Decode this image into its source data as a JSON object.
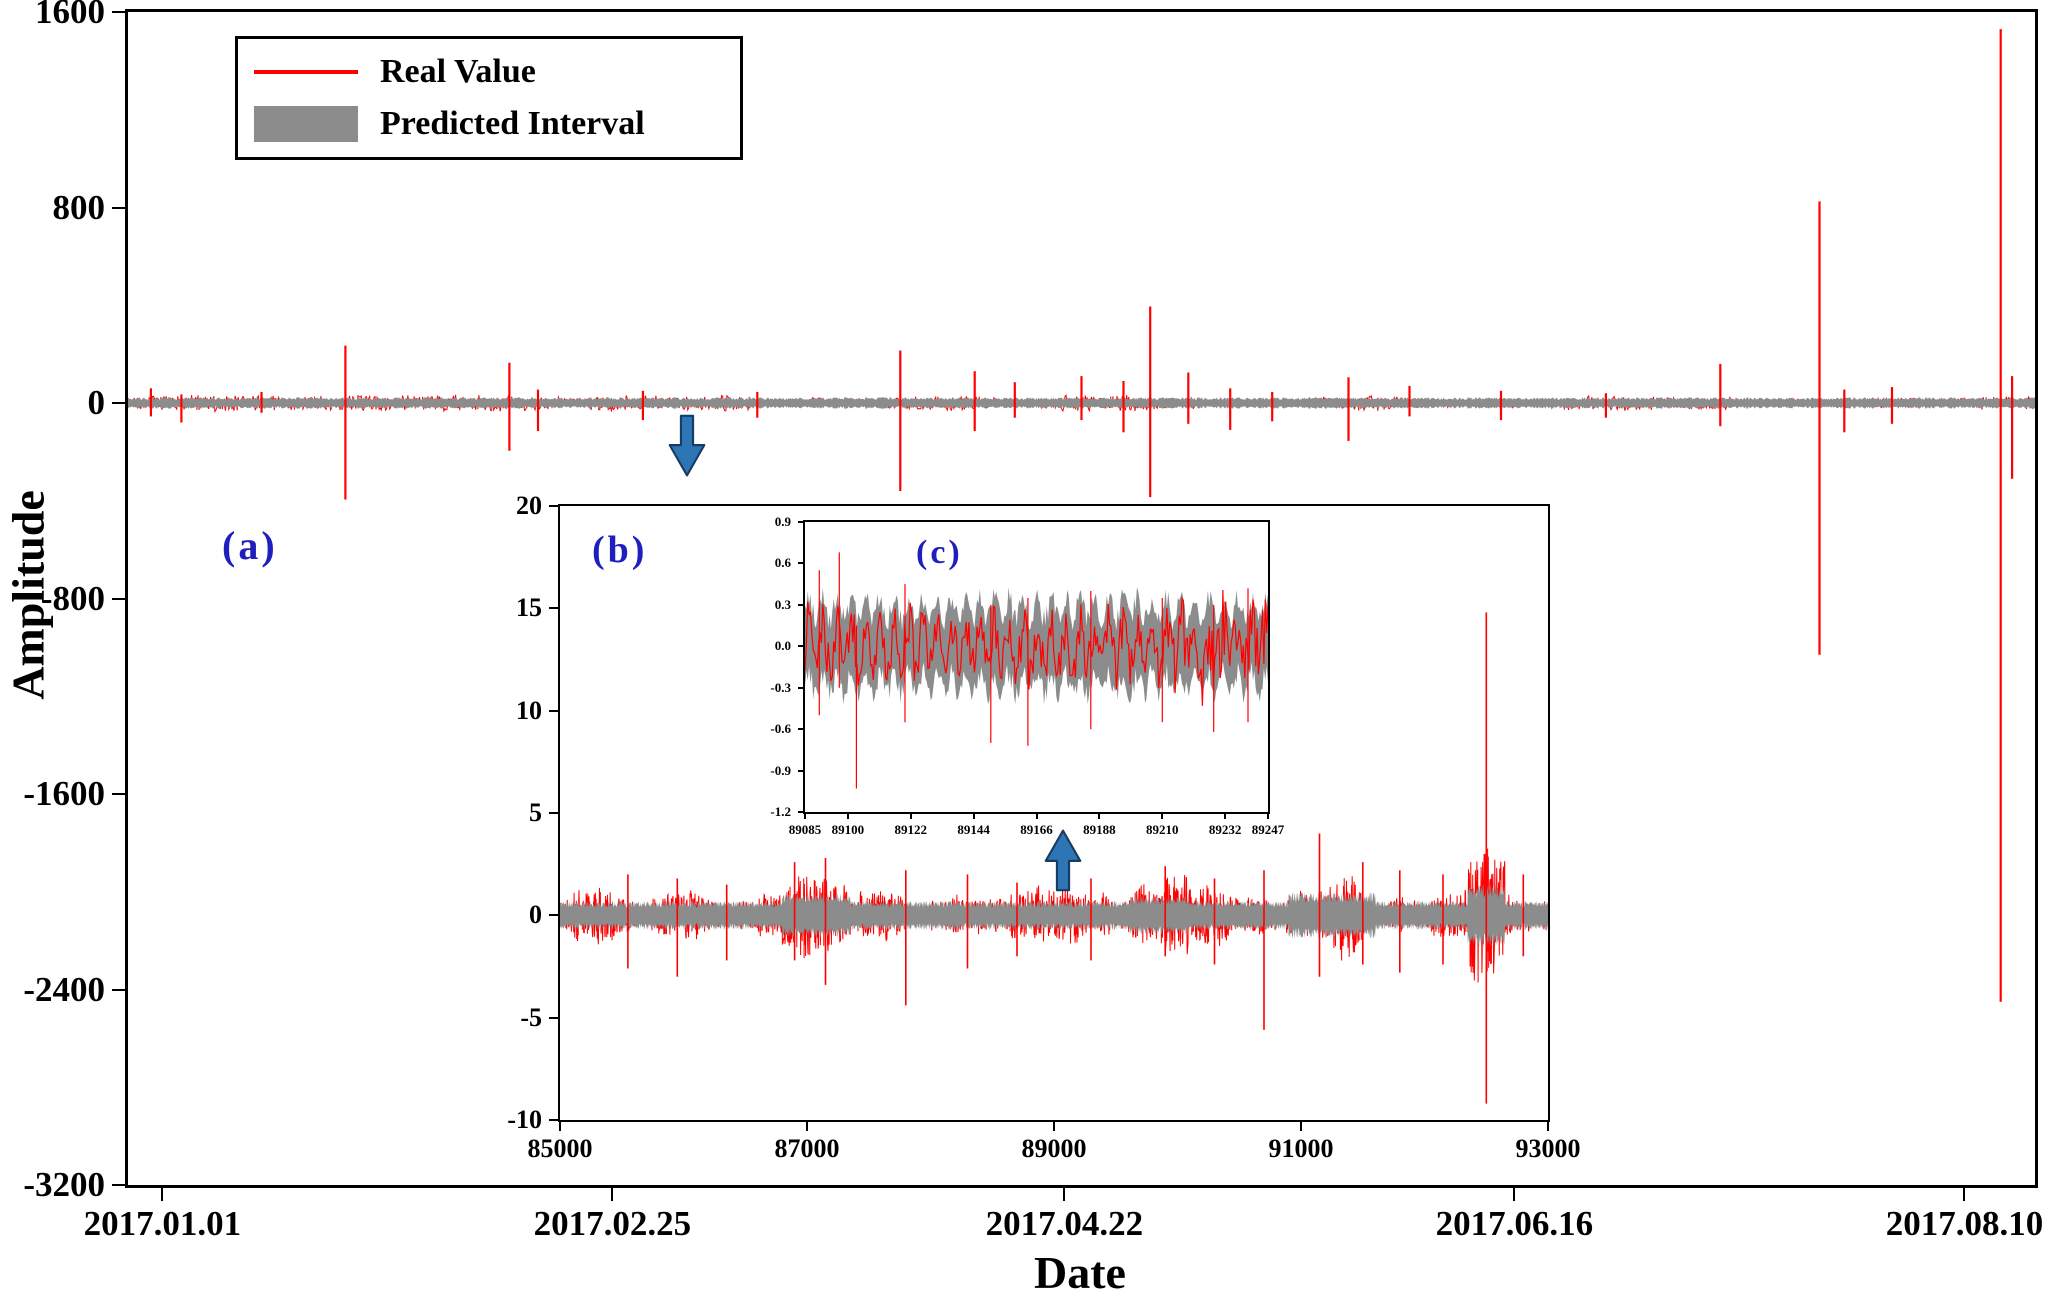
{
  "colors": {
    "real": "#ff0000",
    "interval": "#8c8c8c",
    "panel_label": "#1f1fbe",
    "arrow": "#2e75b6",
    "arrow_edge": "#173c63",
    "axis": "#000000"
  },
  "chart_data": [
    {
      "id": "a",
      "type": "line",
      "panel_label": "(a)",
      "title": "",
      "xlabel": "Date",
      "ylabel": "Amplitude",
      "xlim": [
        0,
        1
      ],
      "ylim": [
        -3200,
        1600
      ],
      "grid": false,
      "legend_position": "upper-left",
      "x_ticks": [
        {
          "v": 0.018,
          "label": "2017.01.01"
        },
        {
          "v": 0.254,
          "label": "2017.02.25"
        },
        {
          "v": 0.491,
          "label": "2017.04.22"
        },
        {
          "v": 0.727,
          "label": "2017.06.16"
        },
        {
          "v": 0.963,
          "label": "2017.08.10"
        }
      ],
      "y_ticks": [
        "1600",
        "800",
        "0",
        "-800",
        "-1600",
        "-2400",
        "-3200"
      ],
      "legend": [
        {
          "label": "Real Value",
          "swatch": "line",
          "color": "#ff0000"
        },
        {
          "label": "Predicted Interval",
          "swatch": "patch",
          "color": "#8c8c8c"
        }
      ],
      "series": {
        "real_noise_amp": 22,
        "interval_halfwidth": 18,
        "spikes": [
          [
            0.012,
            60,
            -55
          ],
          [
            0.028,
            35,
            -80
          ],
          [
            0.07,
            45,
            -40
          ],
          [
            0.114,
            235,
            -395
          ],
          [
            0.2,
            165,
            -195
          ],
          [
            0.215,
            55,
            -115
          ],
          [
            0.27,
            50,
            -70
          ],
          [
            0.33,
            45,
            -60
          ],
          [
            0.405,
            215,
            -360
          ],
          [
            0.444,
            130,
            -115
          ],
          [
            0.465,
            85,
            -60
          ],
          [
            0.5,
            110,
            -70
          ],
          [
            0.522,
            90,
            -120
          ],
          [
            0.536,
            395,
            -385
          ],
          [
            0.556,
            125,
            -85
          ],
          [
            0.578,
            60,
            -110
          ],
          [
            0.6,
            45,
            -75
          ],
          [
            0.64,
            105,
            -155
          ],
          [
            0.672,
            70,
            -55
          ],
          [
            0.72,
            50,
            -70
          ],
          [
            0.775,
            40,
            -60
          ],
          [
            0.835,
            160,
            -95
          ],
          [
            0.887,
            825,
            -1030
          ],
          [
            0.9,
            55,
            -120
          ],
          [
            0.925,
            65,
            -85
          ],
          [
            0.982,
            1530,
            -2450
          ],
          [
            0.988,
            110,
            -310
          ]
        ]
      }
    },
    {
      "id": "b",
      "type": "line",
      "panel_label": "(b)",
      "xlim": [
        85000,
        93000
      ],
      "ylim": [
        -10,
        20
      ],
      "grid": false,
      "x_ticks": [
        {
          "v": 85000,
          "label": "85000"
        },
        {
          "v": 87000,
          "label": "87000"
        },
        {
          "v": 89000,
          "label": "89000"
        },
        {
          "v": 91000,
          "label": "91000"
        },
        {
          "v": 93000,
          "label": "93000"
        }
      ],
      "y_ticks": [
        "20",
        "15",
        "10",
        "5",
        "0",
        "-5",
        "-10"
      ],
      "series": {
        "real_noise_amp": 0.85,
        "interval_halfwidth": 0.55,
        "bursts": [
          [
            86800,
            87350,
            1.5
          ],
          [
            89600,
            90100,
            1.3
          ],
          [
            90900,
            91600,
            1.6
          ],
          [
            92350,
            92650,
            2.2
          ]
        ],
        "spikes": [
          [
            85550,
            2.0,
            -2.6
          ],
          [
            85950,
            1.8,
            -3.0
          ],
          [
            86350,
            1.5,
            -2.2
          ],
          [
            86900,
            2.6,
            -2.2
          ],
          [
            87150,
            2.8,
            -3.4
          ],
          [
            87800,
            2.2,
            -4.4
          ],
          [
            88300,
            2.0,
            -2.6
          ],
          [
            88700,
            1.6,
            -2.0
          ],
          [
            89300,
            1.8,
            -2.2
          ],
          [
            89900,
            2.4,
            -2.0
          ],
          [
            90300,
            1.8,
            -2.4
          ],
          [
            90700,
            2.2,
            -5.6
          ],
          [
            91150,
            4.0,
            -3.0
          ],
          [
            91500,
            2.6,
            -2.4
          ],
          [
            91800,
            2.2,
            -2.8
          ],
          [
            92150,
            2.0,
            -2.4
          ],
          [
            92500,
            14.8,
            -9.2
          ],
          [
            92800,
            2.0,
            -2.0
          ]
        ]
      }
    },
    {
      "id": "c",
      "type": "line",
      "panel_label": "(c)",
      "xlim": [
        89085,
        89247
      ],
      "ylim": [
        -1.2,
        0.9
      ],
      "grid": false,
      "x_ticks": [
        {
          "v": 89085,
          "label": "89085"
        },
        {
          "v": 89100,
          "label": "89100"
        },
        {
          "v": 89122,
          "label": "89122"
        },
        {
          "v": 89144,
          "label": "89144"
        },
        {
          "v": 89166,
          "label": "89166"
        },
        {
          "v": 89188,
          "label": "89188"
        },
        {
          "v": 89210,
          "label": "89210"
        },
        {
          "v": 89232,
          "label": "89232"
        },
        {
          "v": 89247,
          "label": "89247"
        }
      ],
      "y_ticks": [
        "0.9",
        "0.6",
        "0.3",
        "0.0",
        "-0.3",
        "-0.6",
        "-0.9",
        "-1.2"
      ],
      "series": {
        "real_noise_amp": 0.22,
        "interval_halfwidth": 0.27,
        "wave": [
          0.6,
          0.16
        ],
        "spikes": [
          [
            89090,
            0.55,
            -0.5
          ],
          [
            89097,
            0.68,
            -0.3
          ],
          [
            89103,
            0.15,
            -1.03
          ],
          [
            89120,
            0.45,
            -0.55
          ],
          [
            89150,
            0.3,
            -0.7
          ],
          [
            89163,
            0.35,
            -0.72
          ],
          [
            89185,
            0.4,
            -0.6
          ],
          [
            89210,
            0.35,
            -0.55
          ],
          [
            89228,
            0.3,
            -0.62
          ],
          [
            89240,
            0.42,
            -0.55
          ]
        ]
      }
    }
  ]
}
